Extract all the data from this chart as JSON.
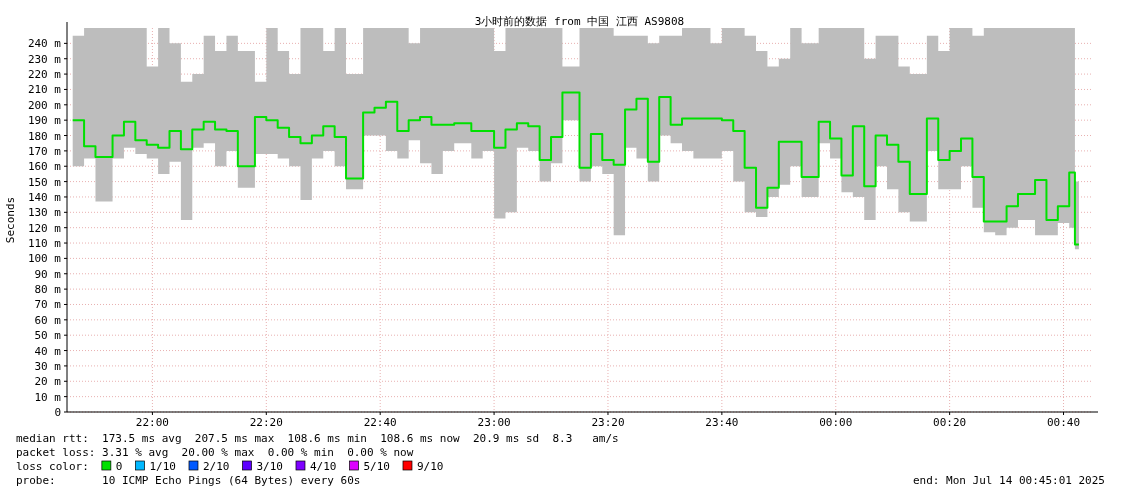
{
  "chart_data": {
    "type": "step",
    "title": "3小时前的数据 from 中国 江西 AS9808",
    "ylabel": "Seconds",
    "legend_title": "loss color:",
    "legend": "bottom",
    "grid": true,
    "xlim": [
      "2025-07-13T21:45",
      "2025-07-14T00:45"
    ],
    "xticks": [
      {
        "value": "2025-07-13T22:00",
        "label": "22:00"
      },
      {
        "value": "2025-07-13T22:20",
        "label": "22:20"
      },
      {
        "value": "2025-07-13T22:40",
        "label": "22:40"
      },
      {
        "value": "2025-07-13T23:00",
        "label": "23:00"
      },
      {
        "value": "2025-07-13T23:20",
        "label": "23:20"
      },
      {
        "value": "2025-07-13T23:40",
        "label": "23:40"
      },
      {
        "value": "2025-07-14T00:00",
        "label": "00:00"
      },
      {
        "value": "2025-07-14T00:20",
        "label": "00:20"
      },
      {
        "value": "2025-07-14T00:40",
        "label": "00:40"
      }
    ],
    "ylim": [
      0,
      250
    ],
    "yticks": [
      0,
      {
        "value": 10,
        "label": "10 m"
      },
      {
        "value": 20,
        "label": "20 m"
      },
      {
        "value": 30,
        "label": "30 m"
      },
      {
        "value": 40,
        "label": "40 m"
      },
      {
        "value": 50,
        "label": "50 m"
      },
      {
        "value": 60,
        "label": "60 m"
      },
      {
        "value": 70,
        "label": "70 m"
      },
      {
        "value": 80,
        "label": "80 m"
      },
      {
        "value": 90,
        "label": "90 m"
      },
      {
        "value": 100,
        "label": "100 m"
      },
      {
        "value": 110,
        "label": "110 m"
      },
      {
        "value": 120,
        "label": "120 m"
      },
      {
        "value": 130,
        "label": "130 m"
      },
      {
        "value": 140,
        "label": "140 m"
      },
      {
        "value": 150,
        "label": "150 m"
      },
      {
        "value": 160,
        "label": "160 m"
      },
      {
        "value": 170,
        "label": "170 m"
      },
      {
        "value": 180,
        "label": "180 m"
      },
      {
        "value": 190,
        "label": "190 m"
      },
      {
        "value": 200,
        "label": "200 m"
      },
      {
        "value": 210,
        "label": "210 m"
      },
      {
        "value": 220,
        "label": "220 m"
      },
      {
        "value": 230,
        "label": "230 m"
      },
      {
        "value": 240,
        "label": "240 m"
      }
    ],
    "x": [
      "2025-07-13T21:46",
      "2025-07-13T21:48",
      "2025-07-13T21:50",
      "2025-07-13T21:53",
      "2025-07-13T21:55",
      "2025-07-13T21:57",
      "2025-07-13T21:59",
      "2025-07-13T22:01",
      "2025-07-13T22:03",
      "2025-07-13T22:05",
      "2025-07-13T22:07",
      "2025-07-13T22:09",
      "2025-07-13T22:11",
      "2025-07-13T22:13",
      "2025-07-13T22:15",
      "2025-07-13T22:18",
      "2025-07-13T22:20",
      "2025-07-13T22:22",
      "2025-07-13T22:24",
      "2025-07-13T22:26",
      "2025-07-13T22:28",
      "2025-07-13T22:30",
      "2025-07-13T22:32",
      "2025-07-13T22:34",
      "2025-07-13T22:37",
      "2025-07-13T22:39",
      "2025-07-13T22:41",
      "2025-07-13T22:43",
      "2025-07-13T22:45",
      "2025-07-13T22:47",
      "2025-07-13T22:49",
      "2025-07-13T22:51",
      "2025-07-13T22:53",
      "2025-07-13T22:56",
      "2025-07-13T22:58",
      "2025-07-13T23:00",
      "2025-07-13T23:02",
      "2025-07-13T23:04",
      "2025-07-13T23:06",
      "2025-07-13T23:08",
      "2025-07-13T23:10",
      "2025-07-13T23:12",
      "2025-07-13T23:15",
      "2025-07-13T23:17",
      "2025-07-13T23:19",
      "2025-07-13T23:21",
      "2025-07-13T23:23",
      "2025-07-13T23:25",
      "2025-07-13T23:27",
      "2025-07-13T23:29",
      "2025-07-13T23:31",
      "2025-07-13T23:33",
      "2025-07-13T23:35",
      "2025-07-13T23:38",
      "2025-07-13T23:40",
      "2025-07-13T23:42",
      "2025-07-13T23:44",
      "2025-07-13T23:46",
      "2025-07-13T23:48",
      "2025-07-13T23:50",
      "2025-07-13T23:52",
      "2025-07-13T23:54",
      "2025-07-13T23:57",
      "2025-07-13T23:59",
      "2025-07-14T00:01",
      "2025-07-14T00:03",
      "2025-07-14T00:05",
      "2025-07-14T00:07",
      "2025-07-14T00:09",
      "2025-07-14T00:11",
      "2025-07-14T00:13",
      "2025-07-14T00:16",
      "2025-07-14T00:18",
      "2025-07-14T00:20",
      "2025-07-14T00:22",
      "2025-07-14T00:24",
      "2025-07-14T00:26",
      "2025-07-14T00:28",
      "2025-07-14T00:30",
      "2025-07-14T00:32",
      "2025-07-14T00:35",
      "2025-07-14T00:37",
      "2025-07-14T00:39",
      "2025-07-14T00:41",
      "2025-07-14T00:42"
    ],
    "series": [
      {
        "name": "0",
        "color": "#00e000",
        "values": [
          190,
          173,
          166,
          180,
          189,
          177,
          174,
          172,
          183,
          171,
          184,
          189,
          184,
          183,
          160,
          192,
          190,
          185,
          179,
          175,
          180,
          186,
          179,
          152,
          195,
          198,
          202,
          183,
          190,
          192,
          187,
          187,
          188,
          183,
          183,
          172,
          184,
          188,
          186,
          164,
          179,
          208,
          159,
          181,
          164,
          161,
          197,
          204,
          163,
          205,
          187,
          191,
          191,
          191,
          190,
          183,
          159,
          133,
          146,
          176,
          176,
          153,
          189,
          178,
          154,
          186,
          147,
          180,
          174,
          163,
          142,
          191,
          164,
          170,
          178,
          153,
          124,
          124,
          134,
          142,
          151,
          125,
          134,
          156,
          109
        ],
        "lower": [
          160,
          165,
          137,
          165,
          172,
          168,
          165,
          155,
          163,
          125,
          172,
          175,
          160,
          170,
          146,
          168,
          168,
          165,
          160,
          138,
          165,
          170,
          160,
          145,
          180,
          180,
          170,
          165,
          177,
          162,
          155,
          170,
          175,
          165,
          170,
          126,
          130,
          172,
          170,
          150,
          162,
          190,
          150,
          160,
          155,
          115,
          172,
          165,
          150,
          180,
          175,
          170,
          165,
          165,
          170,
          150,
          130,
          127,
          140,
          148,
          160,
          140,
          175,
          165,
          143,
          140,
          125,
          160,
          145,
          130,
          124,
          170,
          145,
          145,
          160,
          133,
          117,
          115,
          120,
          125,
          115,
          115,
          123,
          120,
          106
        ],
        "upper": [
          245,
          250,
          250,
          250,
          250,
          250,
          225,
          250,
          240,
          215,
          220,
          245,
          235,
          245,
          235,
          215,
          250,
          235,
          220,
          250,
          250,
          235,
          250,
          220,
          250,
          250,
          250,
          250,
          240,
          250,
          250,
          250,
          250,
          250,
          250,
          235,
          250,
          250,
          250,
          250,
          250,
          225,
          250,
          250,
          250,
          245,
          245,
          245,
          240,
          245,
          245,
          250,
          250,
          240,
          250,
          250,
          245,
          235,
          225,
          230,
          250,
          240,
          250,
          250,
          250,
          250,
          230,
          245,
          245,
          225,
          220,
          245,
          235,
          250,
          250,
          245,
          250,
          250,
          250,
          250,
          250,
          250,
          250,
          250,
          150
        ]
      },
      {
        "name": "1/10",
        "color": "#00b8ff",
        "values": [
          null,
          null,
          null,
          null,
          null,
          null,
          null,
          null,
          null,
          null,
          null,
          null,
          null,
          null,
          null,
          null,
          null,
          null,
          null,
          null,
          null,
          null,
          null,
          null,
          null,
          null,
          null,
          null,
          null,
          null,
          null,
          null,
          null,
          null,
          null,
          null,
          null,
          null,
          null,
          null,
          null,
          null,
          null,
          null,
          null,
          null,
          null,
          null,
          null,
          null,
          null,
          null,
          null,
          null,
          null,
          null,
          null,
          null,
          null,
          null,
          null,
          null,
          null,
          null,
          null,
          null,
          null,
          null,
          null,
          null,
          null,
          null,
          null,
          null,
          null,
          null,
          null,
          null,
          null,
          null,
          null,
          null,
          null,
          null,
          null
        ]
      },
      {
        "name": "2/10",
        "color": "#0059ff",
        "values": [
          null,
          null,
          null,
          null,
          null,
          null,
          null,
          null,
          null,
          null,
          null,
          null,
          null,
          null,
          null,
          null,
          null,
          null,
          null,
          null,
          null,
          null,
          null,
          null,
          null,
          null,
          null,
          null,
          null,
          null,
          null,
          null,
          null,
          null,
          null,
          null,
          null,
          null,
          null,
          null,
          null,
          null,
          null,
          null,
          null,
          null,
          null,
          null,
          null,
          null,
          null,
          null,
          null,
          null,
          null,
          null,
          null,
          null,
          null,
          null,
          null,
          null,
          null,
          null,
          null,
          null,
          null,
          null,
          null,
          null,
          null,
          null,
          null,
          null,
          null,
          null,
          null,
          null,
          null,
          null,
          null,
          null,
          null,
          null,
          null
        ]
      },
      {
        "name": "3/10",
        "color": "#5e00ff",
        "values": [
          null,
          null,
          null,
          null,
          null,
          null,
          null,
          null,
          null,
          null,
          null,
          null,
          null,
          null,
          null,
          null,
          null,
          null,
          null,
          null,
          null,
          null,
          null,
          null,
          null,
          null,
          null,
          null,
          null,
          null,
          null,
          null,
          null,
          null,
          null,
          null,
          null,
          null,
          null,
          null,
          null,
          null,
          null,
          null,
          null,
          null,
          null,
          null,
          null,
          null,
          null,
          null,
          null,
          null,
          null,
          null,
          null,
          null,
          null,
          null,
          null,
          null,
          null,
          null,
          null,
          null,
          null,
          null,
          null,
          null,
          null,
          null,
          null,
          null,
          null,
          null,
          null,
          null,
          null,
          null,
          null,
          null,
          null,
          null,
          null
        ]
      },
      {
        "name": "4/10",
        "color": "#7e00ff",
        "values": [
          null,
          null,
          null,
          null,
          null,
          null,
          null,
          null,
          null,
          null,
          null,
          null,
          null,
          null,
          null,
          null,
          null,
          null,
          null,
          null,
          null,
          null,
          null,
          null,
          null,
          null,
          null,
          null,
          null,
          null,
          null,
          null,
          null,
          null,
          null,
          null,
          null,
          null,
          null,
          null,
          null,
          null,
          null,
          null,
          null,
          null,
          null,
          null,
          null,
          null,
          null,
          null,
          null,
          null,
          null,
          null,
          null,
          null,
          null,
          null,
          null,
          null,
          null,
          null,
          null,
          null,
          null,
          null,
          null,
          null,
          null,
          null,
          null,
          null,
          null,
          null,
          null,
          null,
          null,
          null,
          null,
          null,
          null,
          null,
          null
        ]
      },
      {
        "name": "5/10",
        "color": "#dd00ff",
        "values": [
          null,
          null,
          null,
          null,
          null,
          null,
          null,
          null,
          null,
          null,
          null,
          null,
          null,
          null,
          null,
          null,
          null,
          null,
          null,
          null,
          null,
          null,
          null,
          null,
          null,
          null,
          null,
          null,
          null,
          null,
          null,
          null,
          null,
          null,
          null,
          null,
          null,
          null,
          null,
          null,
          null,
          null,
          null,
          null,
          null,
          null,
          null,
          null,
          null,
          null,
          null,
          null,
          null,
          null,
          null,
          null,
          null,
          null,
          null,
          null,
          null,
          null,
          null,
          null,
          null,
          null,
          null,
          null,
          null,
          null,
          null,
          null,
          null,
          null,
          null,
          null,
          null,
          null,
          null,
          null,
          null,
          null,
          null,
          null,
          null
        ]
      },
      {
        "name": "9/10",
        "color": "#ff0000",
        "values": [
          null,
          null,
          null,
          null,
          null,
          null,
          null,
          null,
          null,
          null,
          null,
          null,
          null,
          null,
          null,
          null,
          null,
          null,
          null,
          null,
          null,
          null,
          null,
          null,
          null,
          null,
          null,
          null,
          null,
          null,
          null,
          null,
          null,
          null,
          null,
          null,
          null,
          null,
          null,
          null,
          null,
          null,
          null,
          null,
          null,
          null,
          null,
          null,
          null,
          null,
          null,
          null,
          null,
          null,
          null,
          null,
          null,
          null,
          null,
          null,
          null,
          null,
          null,
          null,
          null,
          null,
          null,
          null,
          null,
          null,
          null,
          null,
          null,
          null,
          null,
          null,
          null,
          null,
          null,
          null,
          null,
          null,
          null,
          null,
          null
        ]
      }
    ],
    "annotations": [
      "median rtt:  173.5 ms avg  207.5 ms max  108.6 ms min  108.6 ms now  20.9 ms sd  8.3   am/s",
      "packet loss: 3.31 % avg  20.00 % max  0.00 % min  0.00 % now",
      "probe:       10 ICMP Echo Pings (64 Bytes) every 60s",
      "end: Mon Jul 14 00:45:01 2025"
    ]
  }
}
